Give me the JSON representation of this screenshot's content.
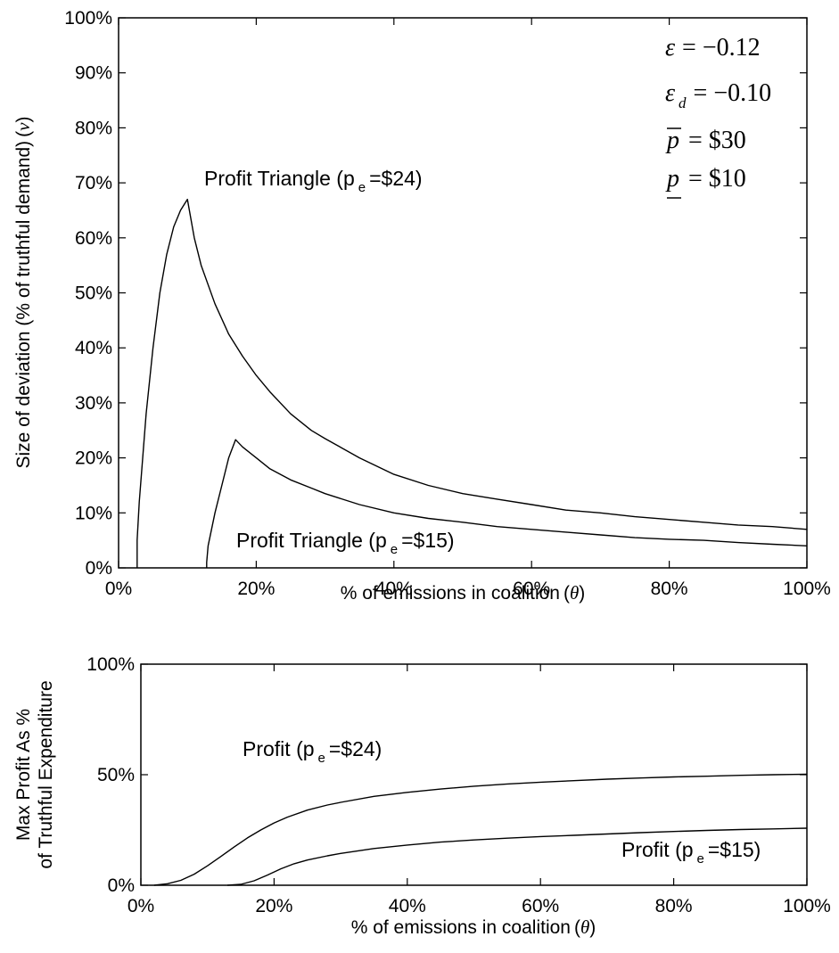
{
  "chart_data": [
    {
      "type": "line",
      "xlabel": "% of emissions in coalition",
      "xlabel_symbol": "θ",
      "ylabel": "Size of deviation (% of truthful demand)",
      "ylabel_symbol": "ν",
      "xlim": [
        0,
        100
      ],
      "ylim": [
        0,
        100
      ],
      "x_ticks": [
        "0%",
        "20%",
        "40%",
        "60%",
        "80%",
        "100%"
      ],
      "y_ticks": [
        "0%",
        "10%",
        "20%",
        "30%",
        "40%",
        "50%",
        "60%",
        "70%",
        "80%",
        "90%",
        "100%"
      ],
      "parameters": [
        {
          "symbol": "ε",
          "sub": "",
          "rhs": "= −0.12"
        },
        {
          "symbol": "ε",
          "sub": "d",
          "rhs": "= −0.10"
        },
        {
          "symbol": "p",
          "sub": "",
          "rhs": "= $30"
        },
        {
          "symbol": "p",
          "sub": "",
          "rhs": "= $10"
        }
      ],
      "annotations": [
        {
          "text": "Profit Triangle (p",
          "sub": "e",
          "tail": "=$24)"
        },
        {
          "text": "Profit Triangle (p",
          "sub": "e",
          "tail": "=$15)"
        }
      ],
      "series": [
        {
          "x": [
            2.7,
            2.7,
            3,
            4,
            5,
            6,
            7,
            8,
            9,
            10,
            11,
            12,
            14,
            16,
            18,
            20,
            22,
            25,
            28,
            30,
            35,
            40,
            45,
            50,
            55,
            60,
            65,
            70,
            75,
            80,
            85,
            90,
            95,
            100
          ],
          "y": [
            0,
            5,
            12,
            28,
            40,
            50,
            57,
            62,
            65,
            67,
            60,
            55,
            48,
            42.5,
            38.5,
            35,
            32,
            28,
            25,
            23.5,
            20,
            17,
            15,
            13.5,
            12.5,
            11.5,
            10.5,
            10,
            9.3,
            8.8,
            8.3,
            7.8,
            7.5,
            7
          ]
        },
        {
          "x": [
            12.8,
            12.8,
            13,
            14,
            15,
            16,
            17,
            18,
            20,
            22,
            25,
            28,
            30,
            35,
            40,
            45,
            50,
            55,
            60,
            65,
            70,
            75,
            80,
            85,
            90,
            95,
            100
          ],
          "y": [
            0,
            1,
            4,
            10,
            15,
            20,
            23.3,
            22,
            20,
            18,
            16,
            14.5,
            13.5,
            11.5,
            10,
            9,
            8.3,
            7.5,
            7,
            6.5,
            6,
            5.5,
            5.2,
            5,
            4.6,
            4.3,
            4
          ]
        }
      ]
    },
    {
      "type": "line",
      "xlabel": "% of emissions in coalition",
      "xlabel_symbol": "θ",
      "ylabel_line1": "Max Profit As %",
      "ylabel_line2": "of Truthful Expenditure",
      "xlim": [
        0,
        100
      ],
      "ylim": [
        0,
        100
      ],
      "x_ticks": [
        "0%",
        "20%",
        "40%",
        "60%",
        "80%",
        "100%"
      ],
      "y_ticks": [
        "0%",
        "50%",
        "100%"
      ],
      "annotations": [
        {
          "text": "Profit (p",
          "sub": "e",
          "tail": "=$24)"
        },
        {
          "text": "Profit (p",
          "sub": "e",
          "tail": "=$15)"
        }
      ],
      "series": [
        {
          "x": [
            2,
            4,
            6,
            8,
            10,
            12,
            14,
            16,
            18,
            20,
            22,
            25,
            28,
            30,
            35,
            40,
            45,
            50,
            55,
            60,
            65,
            70,
            75,
            80,
            85,
            90,
            95,
            100
          ],
          "y": [
            0,
            0.7,
            2.2,
            5,
            8.8,
            13,
            17.3,
            21.4,
            25,
            28.2,
            30.8,
            34,
            36.3,
            37.5,
            40.2,
            42,
            43.5,
            44.8,
            45.8,
            46.6,
            47.3,
            48,
            48.5,
            49,
            49.3,
            49.7,
            50,
            50.2
          ]
        },
        {
          "x": [
            13,
            15,
            17,
            19,
            21,
            23,
            25,
            28,
            30,
            35,
            40,
            45,
            50,
            55,
            60,
            65,
            70,
            75,
            80,
            85,
            90,
            95,
            100
          ],
          "y": [
            0,
            0.4,
            2,
            4.6,
            7.4,
            9.7,
            11.4,
            13.3,
            14.4,
            16.6,
            18.2,
            19.5,
            20.5,
            21.3,
            22,
            22.6,
            23.2,
            23.8,
            24.3,
            24.8,
            25.2,
            25.5,
            25.8
          ]
        }
      ]
    }
  ]
}
